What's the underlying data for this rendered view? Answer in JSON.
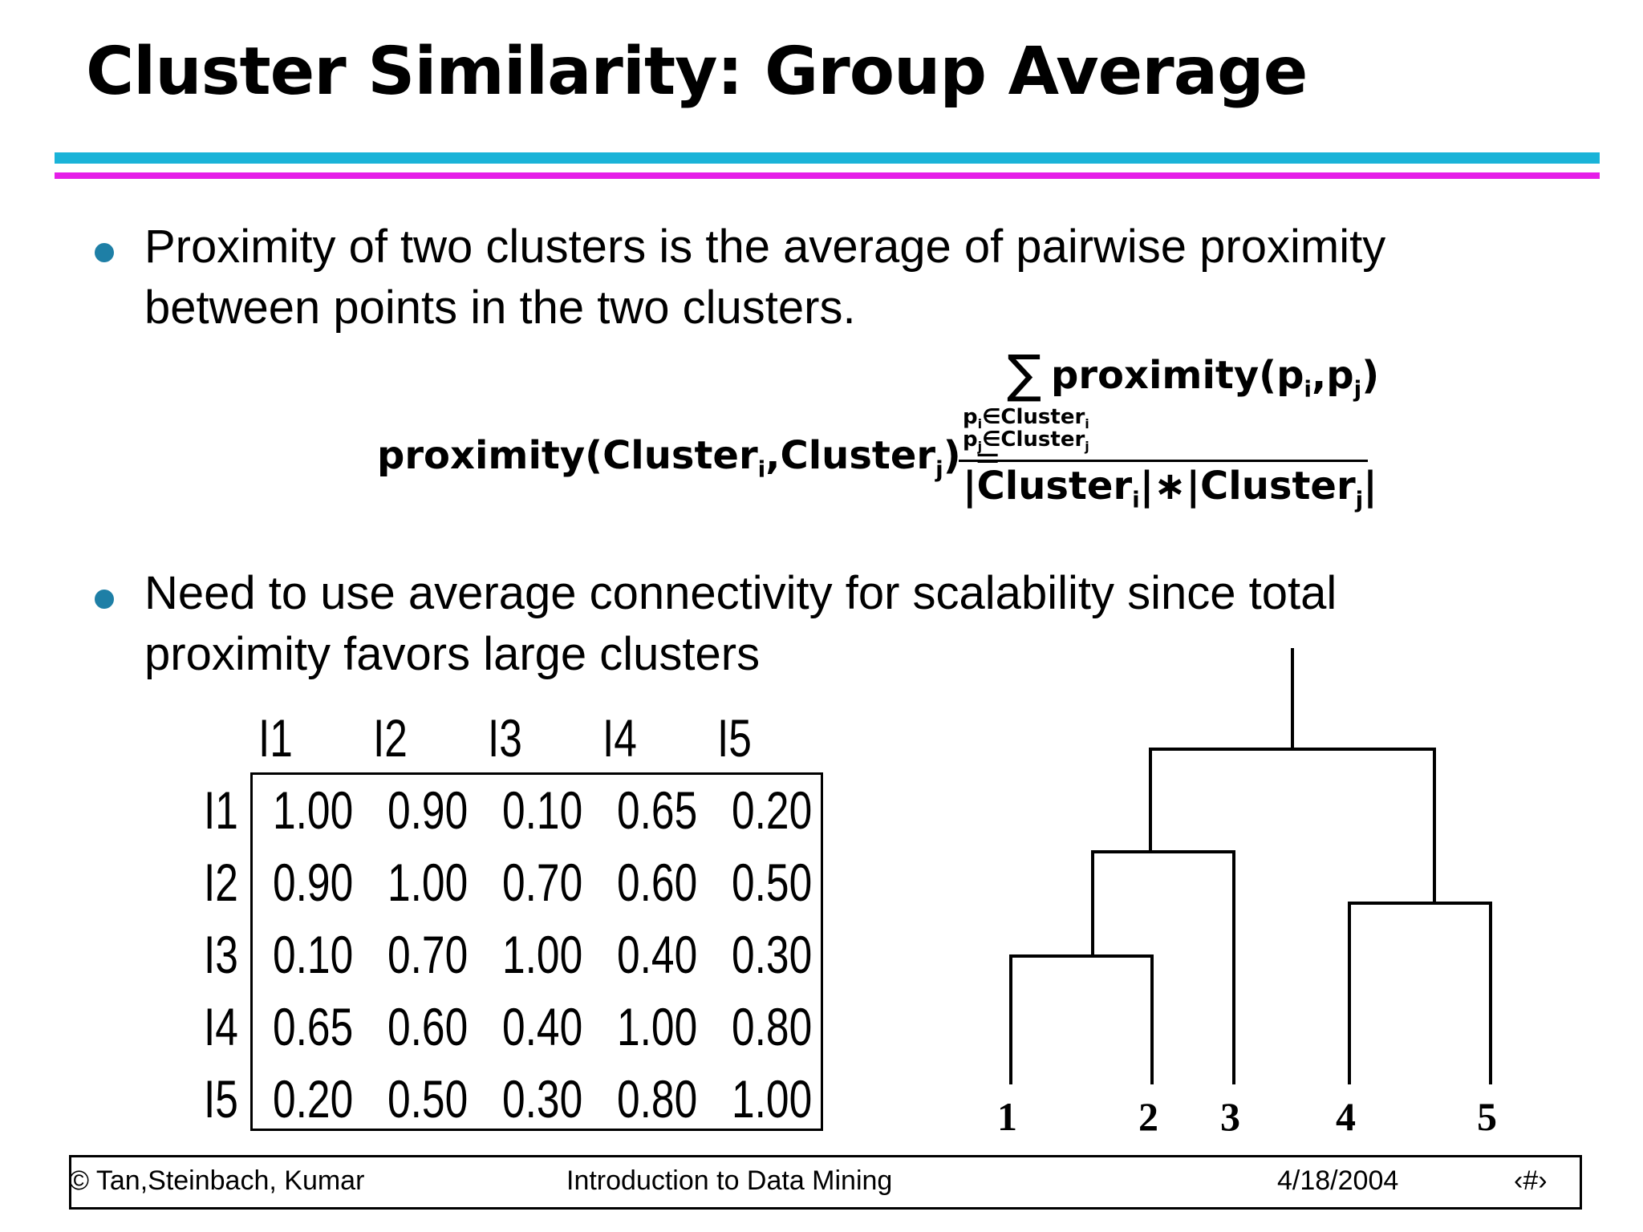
{
  "title": "Cluster Similarity: Group Average",
  "colors": {
    "rule_top": "#1ab3d8",
    "rule_bottom": "#e51ee8",
    "bullet": "#1e7fa6"
  },
  "bullets": [
    {
      "lines": [
        "Proximity of two clusters is the average of pairwise proximity",
        "between points in the two clusters."
      ]
    },
    {
      "lines": [
        "Need to use average connectivity for scalability since total",
        "proximity favors large clusters"
      ]
    }
  ],
  "formula": {
    "lhs_main": "proximity(Cluster",
    "lhs_sub_i": "i",
    "lhs_comma": ",Cluster",
    "lhs_sub_j": "j",
    "lhs_close": ")",
    "equals": "=",
    "sum_symbol": "∑",
    "numerator_main": "proximity(p",
    "numerator_sub_i": "i",
    "numerator_comma": ",p",
    "numerator_sub_j": "j",
    "numerator_close": ")",
    "under_sum_1": "p",
    "under_sum_1_sub": "i",
    "under_sum_1_rest": "∈Cluster",
    "under_sum_1_sub2": "i",
    "under_sum_2": "p",
    "under_sum_2_sub": "j",
    "under_sum_2_rest": "∈Cluster",
    "under_sum_2_sub2": "j",
    "denominator_a": "|Cluster",
    "denominator_sub_i": "i",
    "denominator_b": "|∗|Cluster",
    "denominator_sub_j": "j",
    "denominator_c": "|"
  },
  "matrix": {
    "columns": [
      "I1",
      "I2",
      "I3",
      "I4",
      "I5"
    ],
    "rows": [
      {
        "label": "I1",
        "values": [
          "1.00",
          "0.90",
          "0.10",
          "0.65",
          "0.20"
        ]
      },
      {
        "label": "I2",
        "values": [
          "0.90",
          "1.00",
          "0.70",
          "0.60",
          "0.50"
        ]
      },
      {
        "label": "I3",
        "values": [
          "0.10",
          "0.70",
          "1.00",
          "0.40",
          "0.30"
        ]
      },
      {
        "label": "I4",
        "values": [
          "0.65",
          "0.60",
          "0.40",
          "1.00",
          "0.80"
        ]
      },
      {
        "label": "I5",
        "values": [
          "0.20",
          "0.50",
          "0.30",
          "0.80",
          "1.00"
        ]
      }
    ]
  },
  "dendrogram": {
    "leaves": [
      "1",
      "2",
      "3",
      "4",
      "5"
    ]
  },
  "footer": {
    "left": "© Tan,Steinbach, Kumar",
    "center": "Introduction to Data Mining",
    "date": "4/18/2004",
    "page": "‹#›"
  }
}
